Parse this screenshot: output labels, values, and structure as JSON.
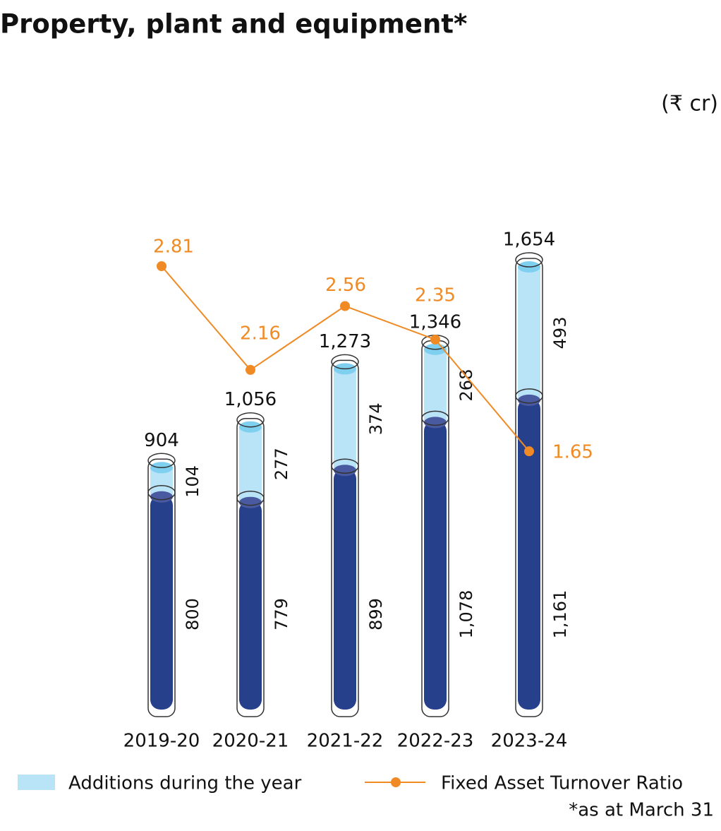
{
  "chart_data": {
    "type": "stacked-bar-line",
    "title": "Property, plant and equipment*",
    "unit": "(₹ cr)",
    "footnote": "*as at March 31",
    "categories": [
      "2019-20",
      "2020-21",
      "2021-22",
      "2022-23",
      "2023-24"
    ],
    "series": [
      {
        "color": "#27408b",
        "values": [
          800,
          779,
          899,
          1078,
          1161
        ],
        "value_labels": [
          "800",
          "779",
          "899",
          "1,078",
          "1,161"
        ]
      },
      {
        "name": "Additions during the year",
        "color": "#b9e3f7",
        "values": [
          104,
          277,
          374,
          268,
          493
        ]
      },
      {
        "name": "Fixed Asset Turnover Ratio",
        "type": "line",
        "color": "#f08a24",
        "values": [
          2.81,
          2.16,
          2.56,
          2.35,
          1.65
        ]
      }
    ],
    "totals": {
      "values": [
        904,
        1056,
        1273,
        1346,
        1654
      ],
      "value_labels": [
        "904",
        "1,056",
        "1,273",
        "1,346",
        "1,654"
      ]
    }
  }
}
